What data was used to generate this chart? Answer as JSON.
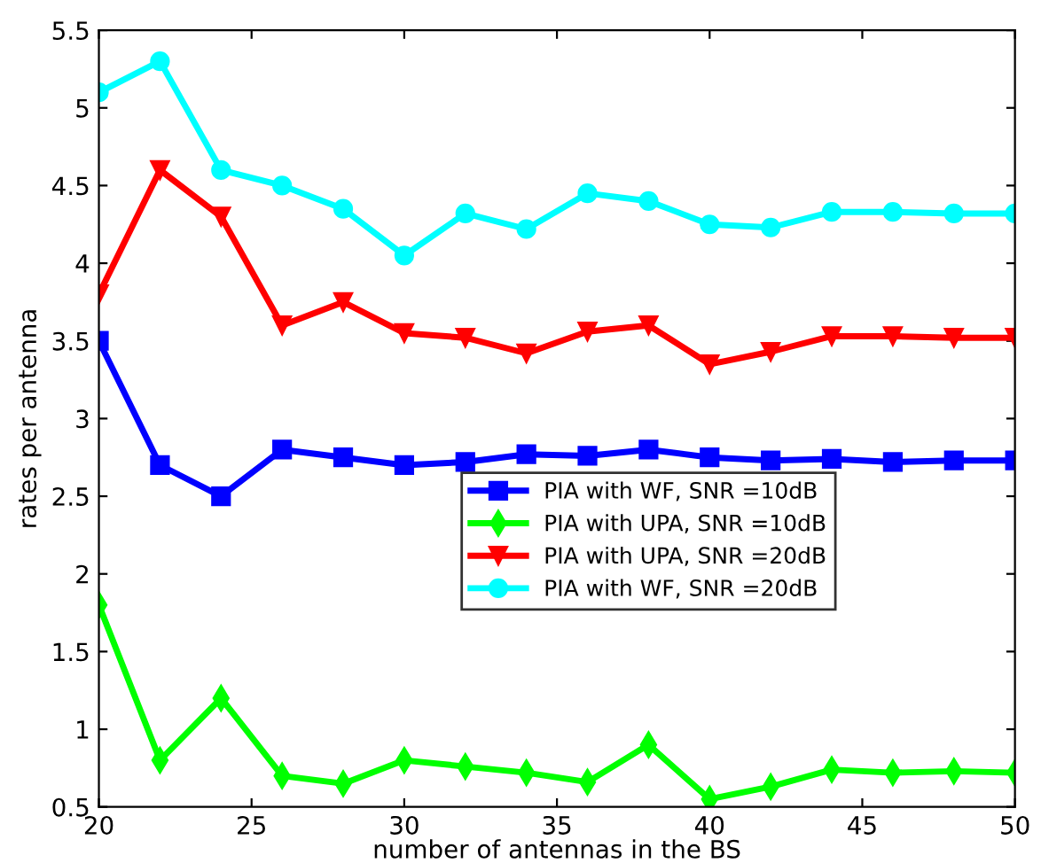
{
  "chart_data": {
    "type": "line",
    "xlabel": "number of antennas in the BS",
    "ylabel": "rates per antenna",
    "x": [
      20,
      22,
      24,
      26,
      28,
      30,
      32,
      34,
      36,
      38,
      40,
      42,
      44,
      46,
      48,
      50
    ],
    "xlim": [
      20,
      50
    ],
    "xticks": [
      20,
      25,
      30,
      35,
      40,
      45,
      50
    ],
    "ylim": [
      0.5,
      5.5
    ],
    "yticks": [
      0.5,
      1,
      1.5,
      2,
      2.5,
      3,
      3.5,
      4,
      4.5,
      5,
      5.5
    ],
    "grid": false,
    "legend": "bottom",
    "line_style": "solid",
    "series": [
      {
        "name": "PIA with WF, SNR =10dB",
        "color": "#0000ff",
        "marker": "square",
        "values": [
          3.5,
          2.7,
          2.5,
          2.8,
          2.75,
          2.7,
          2.72,
          2.77,
          2.76,
          2.8,
          2.75,
          2.73,
          2.74,
          2.72,
          2.73,
          2.73
        ]
      },
      {
        "name": "PIA with UPA, SNR =10dB",
        "color": "#00ff00",
        "marker": "diamond",
        "values": [
          1.8,
          0.8,
          1.2,
          0.7,
          0.65,
          0.8,
          0.76,
          0.72,
          0.66,
          0.9,
          0.55,
          0.63,
          0.74,
          0.72,
          0.73,
          0.72
        ]
      },
      {
        "name": "PIA with UPA, SNR =20dB",
        "color": "#ff0000",
        "marker": "triangle",
        "values": [
          3.8,
          4.6,
          4.3,
          3.6,
          3.75,
          3.55,
          3.52,
          3.42,
          3.56,
          3.6,
          3.35,
          3.43,
          3.53,
          3.53,
          3.52,
          3.52
        ]
      },
      {
        "name": "PIA with WF, SNR =20dB",
        "color": "#00ffff",
        "marker": "circle",
        "values": [
          5.1,
          5.3,
          4.6,
          4.5,
          4.35,
          4.05,
          4.32,
          4.22,
          4.45,
          4.4,
          4.25,
          4.23,
          4.33,
          4.33,
          4.32,
          4.32
        ]
      }
    ]
  }
}
